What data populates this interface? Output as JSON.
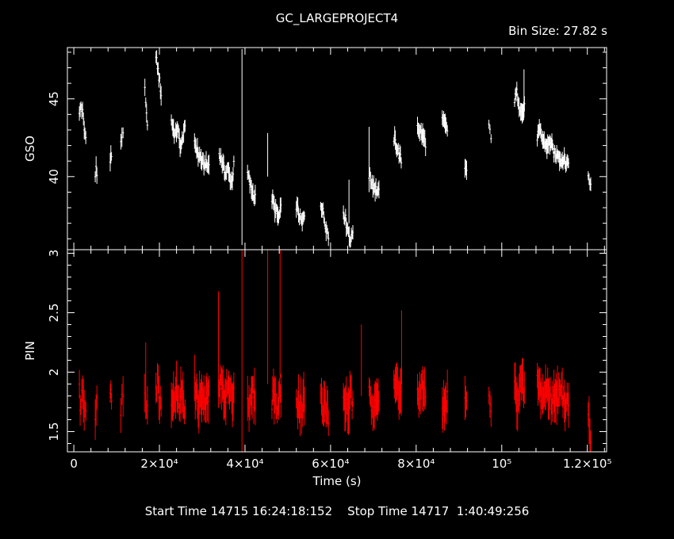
{
  "header": {
    "title": "GC_LARGEPROJECT4",
    "bin_size": "Bin Size: 27.82 s"
  },
  "footer": {
    "times": "Start Time 14715 16:24:18:152    Stop Time 14717  1:40:49:256"
  },
  "colors": {
    "background": "#000000",
    "axes": "#ffffff",
    "gso": "#ffffff",
    "pin": "#ff0000"
  },
  "chart_data": [
    {
      "type": "scatter",
      "ylabel": "GSO",
      "xlim": [
        -1500,
        124500
      ],
      "ylim": [
        35.3,
        48.3
      ],
      "yticks": [
        40,
        45
      ],
      "yticklabels": [
        "40",
        "45"
      ],
      "segments": [
        {
          "x0": 1300,
          "x1": 2800,
          "y": [
            43.9,
            44.6,
            44.1,
            43.0,
            42.5
          ]
        },
        {
          "x0": 5000,
          "x1": 5400,
          "y": [
            40.3,
            40.6,
            40.0
          ]
        },
        {
          "x0": 8500,
          "x1": 8800,
          "y": [
            41.0,
            41.4
          ]
        },
        {
          "x0": 11000,
          "x1": 11500,
          "y": [
            42.3,
            42.7,
            42.5
          ]
        },
        {
          "x0": 16600,
          "x1": 17200,
          "y": [
            45.6,
            44.0,
            43.6
          ]
        },
        {
          "x0": 19200,
          "x1": 20400,
          "y": [
            47.6,
            47.2,
            46.6,
            46.0,
            45.3
          ]
        },
        {
          "x0": 22800,
          "x1": 26000,
          "y": [
            43.6,
            43.1,
            42.6,
            43.2,
            42.4,
            41.8,
            42.8,
            43.0
          ]
        },
        {
          "x0": 28200,
          "x1": 31600,
          "y": [
            42.3,
            41.9,
            41.4,
            41.3,
            41.0,
            40.7,
            40.9,
            40.6,
            40.8
          ]
        },
        {
          "x0": 34000,
          "x1": 37400,
          "y": [
            41.5,
            41.1,
            40.6,
            40.2,
            40.5,
            40.0,
            39.6,
            40.7
          ]
        },
        {
          "x0": 40600,
          "x1": 42400,
          "y": [
            40.2,
            39.7,
            39.2,
            38.9,
            38.6
          ]
        },
        {
          "x0": 46300,
          "x1": 48400,
          "y": [
            38.6,
            38.1,
            37.7,
            37.3,
            37.9
          ]
        },
        {
          "x0": 52000,
          "x1": 53900,
          "y": [
            38.2,
            37.7,
            37.2,
            37.0,
            37.6
          ]
        },
        {
          "x0": 57700,
          "x1": 59500,
          "y": [
            38.3,
            37.8,
            37.2,
            36.7,
            36.1
          ]
        },
        {
          "x0": 63000,
          "x1": 65200,
          "y": [
            37.8,
            37.3,
            36.8,
            36.3,
            35.8,
            36.6
          ]
        },
        {
          "x0": 69000,
          "x1": 71300,
          "y": [
            40.1,
            39.7,
            39.4,
            39.1,
            38.9
          ]
        },
        {
          "x0": 74800,
          "x1": 76500,
          "y": [
            42.5,
            42.0,
            41.5,
            41.0
          ]
        },
        {
          "x0": 80300,
          "x1": 82200,
          "y": [
            43.3,
            42.9,
            42.6,
            42.2
          ]
        },
        {
          "x0": 86100,
          "x1": 87300,
          "y": [
            43.6,
            43.3,
            42.9
          ]
        },
        {
          "x0": 91400,
          "x1": 91800,
          "y": [
            40.6,
            40.4
          ]
        },
        {
          "x0": 97000,
          "x1": 97500,
          "y": [
            43.1,
            42.7
          ]
        },
        {
          "x0": 103000,
          "x1": 105300,
          "y": [
            44.9,
            45.4,
            44.6,
            44.0,
            44.4
          ]
        },
        {
          "x0": 108300,
          "x1": 115600,
          "y": [
            42.6,
            42.9,
            42.4,
            42.1,
            41.9,
            42.3,
            41.7,
            41.3,
            41.6,
            41.0,
            41.2,
            40.8,
            41.1
          ]
        },
        {
          "x0": 120200,
          "x1": 120800,
          "y": [
            39.9,
            39.5
          ]
        }
      ],
      "spikes": [
        {
          "x": 39300,
          "y0": 35.6,
          "y1": 48.2
        },
        {
          "x": 45300,
          "y0": 40.0,
          "y1": 42.8
        },
        {
          "x": 64300,
          "y0": 37.0,
          "y1": 39.8
        },
        {
          "x": 69000,
          "y0": 39.0,
          "y1": 43.2
        },
        {
          "x": 105200,
          "y0": 43.8,
          "y1": 46.9
        }
      ]
    },
    {
      "type": "scatter",
      "ylabel": "PIN",
      "xlabel": "Time (s)",
      "xlim": [
        -1500,
        124500
      ],
      "ylim": [
        1.33,
        3.03
      ],
      "yticks": [
        1.5,
        2,
        2.5,
        3
      ],
      "yticklabels": [
        "1.5",
        "2",
        "2.5",
        "3"
      ],
      "xticks": [
        0,
        20000,
        40000,
        60000,
        80000,
        100000,
        120000
      ],
      "xticklabels": [
        "0",
        "2×10⁴",
        "4×10⁴",
        "6×10⁴",
        "8×10⁴",
        "10⁵",
        "1.2×10⁵"
      ],
      "segments": [
        {
          "x0": 1300,
          "x1": 2800,
          "y": [
            1.8,
            1.72,
            1.85,
            1.75,
            1.68
          ]
        },
        {
          "x0": 5000,
          "x1": 5400,
          "y": [
            1.7,
            1.78
          ]
        },
        {
          "x0": 8500,
          "x1": 8800,
          "y": [
            1.75,
            1.85
          ]
        },
        {
          "x0": 11000,
          "x1": 11500,
          "y": [
            1.72,
            1.8
          ]
        },
        {
          "x0": 16600,
          "x1": 17200,
          "y": [
            1.88,
            1.75,
            1.82
          ]
        },
        {
          "x0": 19200,
          "x1": 20400,
          "y": [
            1.85,
            1.95,
            1.78,
            1.72
          ]
        },
        {
          "x0": 22800,
          "x1": 26000,
          "y": [
            1.82,
            1.74,
            1.88,
            1.7,
            1.78,
            1.84,
            1.68
          ]
        },
        {
          "x0": 28200,
          "x1": 31600,
          "y": [
            1.86,
            1.78,
            1.74,
            1.82,
            1.7,
            1.76,
            1.8
          ]
        },
        {
          "x0": 34000,
          "x1": 37400,
          "y": [
            1.92,
            1.85,
            1.8,
            1.88,
            1.78,
            1.86
          ]
        },
        {
          "x0": 40600,
          "x1": 42400,
          "y": [
            1.78,
            1.7,
            1.82,
            1.74
          ]
        },
        {
          "x0": 46300,
          "x1": 48400,
          "y": [
            1.78,
            1.85,
            1.7,
            1.76,
            1.8
          ]
        },
        {
          "x0": 52000,
          "x1": 53900,
          "y": [
            1.82,
            1.74,
            1.7,
            1.78
          ]
        },
        {
          "x0": 57700,
          "x1": 59500,
          "y": [
            1.76,
            1.68,
            1.72,
            1.65
          ]
        },
        {
          "x0": 63000,
          "x1": 65200,
          "y": [
            1.7,
            1.75,
            1.68,
            1.8,
            1.72
          ]
        },
        {
          "x0": 69000,
          "x1": 71300,
          "y": [
            1.78,
            1.72,
            1.84,
            1.76
          ]
        },
        {
          "x0": 74800,
          "x1": 76500,
          "y": [
            1.85,
            1.9,
            1.8
          ]
        },
        {
          "x0": 80300,
          "x1": 82200,
          "y": [
            1.82,
            1.76,
            1.88,
            1.8
          ]
        },
        {
          "x0": 86100,
          "x1": 87300,
          "y": [
            1.74,
            1.68,
            1.78
          ]
        },
        {
          "x0": 91400,
          "x1": 91800,
          "y": [
            1.76,
            1.7
          ]
        },
        {
          "x0": 97000,
          "x1": 97500,
          "y": [
            1.78,
            1.72
          ]
        },
        {
          "x0": 103000,
          "x1": 105300,
          "y": [
            1.85,
            1.78,
            1.9,
            1.82
          ]
        },
        {
          "x0": 108300,
          "x1": 115600,
          "y": [
            1.92,
            1.84,
            1.78,
            1.88,
            1.8,
            1.74,
            1.86,
            1.78,
            1.82,
            1.76,
            1.8
          ]
        },
        {
          "x0": 120200,
          "x1": 120800,
          "y": [
            1.58,
            1.5
          ]
        }
      ],
      "spikes": [
        {
          "x": 33800,
          "y0": 1.7,
          "y1": 2.68
        },
        {
          "x": 39300,
          "y0": 1.33,
          "y1": 3.03
        },
        {
          "x": 45300,
          "y0": 1.9,
          "y1": 3.03
        },
        {
          "x": 48200,
          "y0": 1.95,
          "y1": 3.03
        },
        {
          "x": 76600,
          "y0": 1.9,
          "y1": 2.52
        },
        {
          "x": 67200,
          "y0": 1.8,
          "y1": 2.4
        },
        {
          "x": 16800,
          "y0": 1.75,
          "y1": 2.25
        }
      ]
    }
  ]
}
